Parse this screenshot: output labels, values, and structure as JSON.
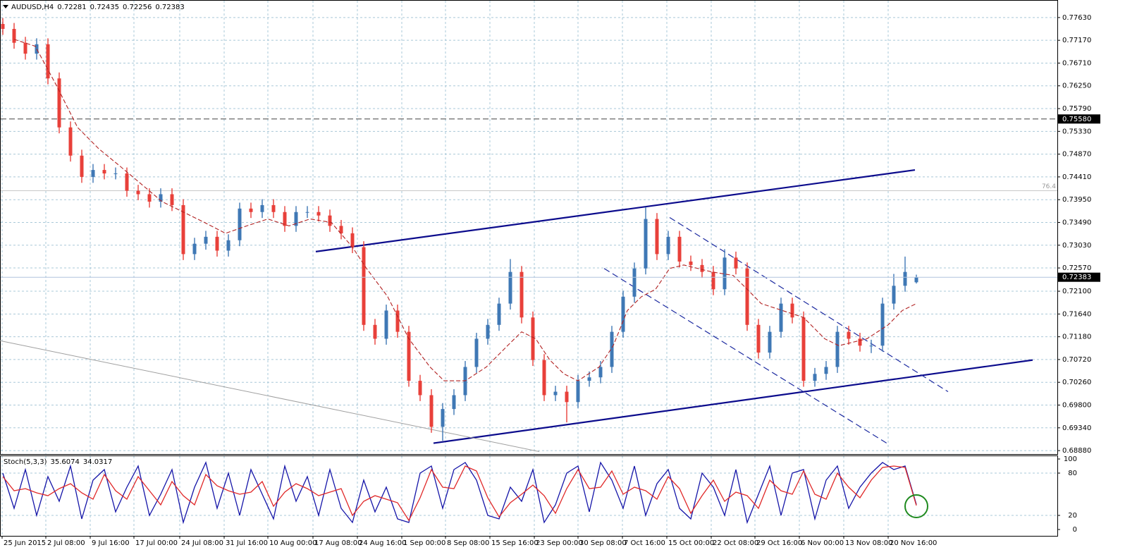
{
  "chart_data": {
    "type": "candlestick",
    "symbol": "AUDUSD,H4",
    "x": [
      2,
      10,
      18,
      26,
      34,
      42,
      50,
      58,
      66,
      74,
      82,
      90,
      98,
      106,
      114,
      122,
      130,
      138,
      146,
      154,
      162,
      170,
      178,
      186,
      194,
      202,
      210,
      218,
      226,
      234,
      242,
      250,
      258,
      266,
      274,
      282,
      290,
      298,
      306,
      314,
      322,
      330,
      338,
      346,
      354,
      362,
      370,
      378,
      386,
      394,
      402,
      410,
      418,
      426,
      434,
      442,
      450,
      458,
      466,
      474,
      482,
      490,
      498,
      506,
      514,
      522,
      530,
      538,
      546,
      554,
      562,
      570,
      578,
      586,
      594,
      602,
      610,
      618,
      626,
      634,
      642,
      650
    ],
    "open": [
      0.775,
      0.774,
      0.7712,
      0.769,
      0.7709,
      0.764,
      0.7541,
      0.7484,
      0.7441,
      0.7455,
      0.7448,
      0.7448,
      0.7413,
      0.7406,
      0.7391,
      0.7406,
      0.7384,
      0.7285,
      0.7306,
      0.732,
      0.7292,
      0.7313,
      0.7377,
      0.737,
      0.7384,
      0.737,
      0.7342,
      0.737,
      0.737,
      0.7363,
      0.7342,
      0.7327,
      0.7299,
      0.7142,
      0.7114,
      0.7171,
      0.7128,
      0.7029,
      0.7,
      0.6936,
      0.6972,
      0.7,
      0.7057,
      0.7114,
      0.7142,
      0.7185,
      0.7249,
      0.7157,
      0.7071,
      0.7,
      0.7007,
      0.6986,
      0.7029,
      0.7036,
      0.7057,
      0.7128,
      0.7199,
      0.7256,
      0.7356,
      0.7285,
      0.732,
      0.727,
      0.7263,
      0.7249,
      0.7214,
      0.7278,
      0.7256,
      0.7142,
      0.7086,
      0.7128,
      0.7185,
      0.7157,
      0.7029,
      0.7043,
      0.7057,
      0.7128,
      0.7114,
      0.71,
      0.71,
      0.7185,
      0.7221,
      0.72281
    ],
    "high": [
      0.7762,
      0.7752,
      0.7724,
      0.7721,
      0.7721,
      0.7652,
      0.7553,
      0.7496,
      0.7467,
      0.7467,
      0.746,
      0.746,
      0.7425,
      0.7418,
      0.7418,
      0.7418,
      0.7396,
      0.7318,
      0.7332,
      0.7332,
      0.7325,
      0.7389,
      0.7389,
      0.7396,
      0.7396,
      0.7382,
      0.7382,
      0.7382,
      0.7382,
      0.7375,
      0.7354,
      0.7339,
      0.7311,
      0.7154,
      0.7183,
      0.7183,
      0.714,
      0.7041,
      0.7012,
      0.6984,
      0.7012,
      0.7069,
      0.7126,
      0.7154,
      0.7197,
      0.7275,
      0.7261,
      0.7169,
      0.7083,
      0.7019,
      0.7019,
      0.7041,
      0.7048,
      0.7069,
      0.714,
      0.7211,
      0.7268,
      0.738,
      0.7368,
      0.7332,
      0.7332,
      0.7282,
      0.7275,
      0.7261,
      0.7295,
      0.729,
      0.7268,
      0.7154,
      0.714,
      0.7197,
      0.7197,
      0.7169,
      0.7055,
      0.7069,
      0.714,
      0.714,
      0.7126,
      0.7112,
      0.7197,
      0.7245,
      0.728,
      0.72435
    ],
    "low": [
      0.7728,
      0.77,
      0.7678,
      0.7678,
      0.7628,
      0.7529,
      0.7472,
      0.7429,
      0.7429,
      0.7436,
      0.7436,
      0.7401,
      0.7394,
      0.7379,
      0.7379,
      0.7372,
      0.7273,
      0.7273,
      0.7294,
      0.728,
      0.728,
      0.7301,
      0.7358,
      0.7358,
      0.7358,
      0.733,
      0.733,
      0.7358,
      0.7351,
      0.733,
      0.7315,
      0.7287,
      0.713,
      0.7102,
      0.7102,
      0.7116,
      0.7017,
      0.6988,
      0.6924,
      0.6908,
      0.696,
      0.6988,
      0.7045,
      0.7102,
      0.713,
      0.7173,
      0.7145,
      0.7059,
      0.6988,
      0.6988,
      0.6945,
      0.6974,
      0.7017,
      0.7024,
      0.7045,
      0.7116,
      0.7187,
      0.7244,
      0.7273,
      0.7273,
      0.7258,
      0.7251,
      0.7237,
      0.7202,
      0.7202,
      0.7244,
      0.713,
      0.7074,
      0.7074,
      0.7116,
      0.7145,
      0.7017,
      0.7017,
      0.7031,
      0.7045,
      0.7102,
      0.7088,
      0.7085,
      0.7088,
      0.7173,
      0.7209,
      0.72256
    ],
    "close": [
      0.774,
      0.7712,
      0.769,
      0.7709,
      0.764,
      0.7541,
      0.7484,
      0.7441,
      0.7455,
      0.7448,
      0.7448,
      0.7413,
      0.7406,
      0.7391,
      0.7406,
      0.7384,
      0.7285,
      0.7306,
      0.732,
      0.7292,
      0.7313,
      0.7377,
      0.737,
      0.7384,
      0.737,
      0.7342,
      0.737,
      0.737,
      0.7363,
      0.7342,
      0.7327,
      0.7299,
      0.7142,
      0.7114,
      0.7171,
      0.7128,
      0.7029,
      0.7,
      0.6936,
      0.6972,
      0.7,
      0.7057,
      0.7114,
      0.7142,
      0.7185,
      0.7249,
      0.7157,
      0.7071,
      0.7,
      0.7007,
      0.6986,
      0.7029,
      0.7036,
      0.7057,
      0.7128,
      0.7199,
      0.7256,
      0.7356,
      0.7285,
      0.732,
      0.727,
      0.7263,
      0.7249,
      0.7214,
      0.7278,
      0.7256,
      0.7142,
      0.7086,
      0.7128,
      0.7185,
      0.7157,
      0.7029,
      0.7043,
      0.7057,
      0.7128,
      0.7114,
      0.71,
      0.71,
      0.7185,
      0.7221,
      0.7249,
      0.72383
    ],
    "up_color": "#3f78b5",
    "down_color": "#e8403a",
    "xlim": [
      0,
      750
    ],
    "ylim": [
      0.6881,
      0.7797
    ],
    "grid": true,
    "yticks": [
      {
        "value": 0.7763,
        "label": "0.77630"
      },
      {
        "value": 0.7717,
        "label": "0.77170"
      },
      {
        "value": 0.7671,
        "label": "0.76710"
      },
      {
        "value": 0.7625,
        "label": "0.76250"
      },
      {
        "value": 0.7579,
        "label": "0.75790"
      },
      {
        "value": 0.7533,
        "label": "0.75330"
      },
      {
        "value": 0.7487,
        "label": "0.74870"
      },
      {
        "value": 0.7441,
        "label": "0.74410"
      },
      {
        "value": 0.7395,
        "label": "0.73950"
      },
      {
        "value": 0.7349,
        "label": "0.73490"
      },
      {
        "value": 0.7303,
        "label": "0.73030"
      },
      {
        "value": 0.7257,
        "label": "0.72570"
      },
      {
        "value": 0.721,
        "label": "0.72100"
      },
      {
        "value": 0.7164,
        "label": "0.71640"
      },
      {
        "value": 0.7118,
        "label": "0.71180"
      },
      {
        "value": 0.7072,
        "label": "0.70720"
      },
      {
        "value": 0.7026,
        "label": "0.70260"
      },
      {
        "value": 0.698,
        "label": "0.69800"
      },
      {
        "value": 0.6934,
        "label": "0.69340"
      },
      {
        "value": 0.6888,
        "label": "0.68880"
      }
    ],
    "xticks": [
      {
        "value": 1.5,
        "label": "25 Jun 2015"
      },
      {
        "value": 32.5,
        "label": "2 Jul 08:00"
      },
      {
        "value": 64,
        "label": "9 Jul 16:00"
      },
      {
        "value": 95,
        "label": "17 Jul 00:00"
      },
      {
        "value": 127.5,
        "label": "24 Jul 08:00"
      },
      {
        "value": 159,
        "label": "31 Jul 16:00"
      },
      {
        "value": 190,
        "label": "10 Aug 00:00"
      },
      {
        "value": 222,
        "label": "17 Aug 08:00"
      },
      {
        "value": 253.5,
        "label": "24 Aug 16:00"
      },
      {
        "value": 285,
        "label": "1 Sep 00:00"
      },
      {
        "value": 316,
        "label": "8 Sep 08:00"
      },
      {
        "value": 347.5,
        "label": "15 Sep 16:00"
      },
      {
        "value": 379,
        "label": "23 Sep 00:00"
      },
      {
        "value": 410,
        "label": "30 Sep 08:00"
      },
      {
        "value": 441.5,
        "label": "7 Oct 16:00"
      },
      {
        "value": 473,
        "label": "15 Oct 00:00"
      },
      {
        "value": 504.5,
        "label": "22 Oct 08:00"
      },
      {
        "value": 535.5,
        "label": "29 Oct 16:00"
      },
      {
        "value": 567,
        "label": "6 Nov 00:00"
      },
      {
        "value": 598.5,
        "label": "13 Nov 08:00"
      },
      {
        "value": 630,
        "label": "20 Nov 16:00"
      }
    ],
    "moving_average": {
      "color": "#b22222",
      "x": [
        10,
        25,
        40,
        55,
        70,
        85,
        100,
        115,
        130,
        145,
        160,
        175,
        190,
        205,
        220,
        235,
        250,
        260,
        275,
        290,
        305,
        315,
        330,
        345,
        360,
        370,
        380,
        390,
        400,
        410,
        425,
        435,
        445,
        455,
        465,
        475,
        485,
        495,
        505,
        520,
        530,
        540,
        555,
        570,
        585,
        595,
        605,
        615,
        630,
        640,
        650
      ],
      "values": [
        0.7719,
        0.7705,
        0.7626,
        0.7541,
        0.7498,
        0.7463,
        0.7427,
        0.7391,
        0.737,
        0.7349,
        0.7327,
        0.7342,
        0.7356,
        0.7342,
        0.7356,
        0.7349,
        0.7299,
        0.7256,
        0.7199,
        0.7114,
        0.7057,
        0.7029,
        0.7029,
        0.7057,
        0.71,
        0.7128,
        0.7114,
        0.7071,
        0.7043,
        0.7029,
        0.7057,
        0.71,
        0.7171,
        0.7199,
        0.7214,
        0.7256,
        0.7263,
        0.7256,
        0.7249,
        0.7242,
        0.7214,
        0.7185,
        0.7171,
        0.7157,
        0.7114,
        0.71,
        0.7107,
        0.7114,
        0.7142,
        0.7171,
        0.7185
      ]
    },
    "trend_lines": [
      {
        "x": [
          224,
          649
        ],
        "values": [
          0.729,
          0.7455
        ],
        "color": "#0b0b8c",
        "style": "solid"
      },
      {
        "x": [
          307.5,
          732.5
        ],
        "values": [
          0.6903,
          0.7071
        ],
        "color": "#0b0b8c",
        "style": "solid"
      },
      {
        "x": [
          475,
          672.5
        ],
        "values": [
          0.7359,
          0.7007
        ],
        "color": "#1c2aa0",
        "style": "dashed"
      },
      {
        "x": [
          428.5,
          629
        ],
        "values": [
          0.7256,
          0.6903
        ],
        "color": "#1c2aa0",
        "style": "dashed"
      },
      {
        "x": [
          0,
          382.5
        ],
        "values": [
          0.711,
          0.6886
        ],
        "color": "#a0a0a0",
        "style": "thin"
      }
    ],
    "hlines": [
      {
        "value": 0.7558,
        "label": "0.75580",
        "color": "#444",
        "style": "dashed"
      }
    ],
    "fib_level": {
      "value": 0.7413,
      "label": "76.4",
      "color": "#c8c8c8"
    },
    "indicator": {
      "type": "line",
      "title": "Stoch(5,3,3)",
      "ylim": [
        0,
        100
      ],
      "yticks": [
        0,
        20,
        80,
        100
      ],
      "series": [
        {
          "color": "#1414a8",
          "values": [
            80,
            30,
            85,
            20,
            75,
            40,
            90,
            15,
            70,
            85,
            25,
            60,
            90,
            20,
            50,
            85,
            10,
            60,
            95,
            30,
            80,
            20,
            85,
            50,
            15,
            90,
            40,
            75,
            20,
            85,
            30,
            10,
            70,
            25,
            60,
            15,
            10,
            80,
            90,
            30,
            85,
            95,
            70,
            20,
            15,
            60,
            40,
            85,
            10,
            35,
            80,
            90,
            25,
            95,
            70,
            30,
            90,
            20,
            65,
            85,
            30,
            15,
            80,
            60,
            20,
            85,
            10,
            50,
            90,
            20,
            80,
            85,
            15,
            70,
            90,
            30,
            60,
            80,
            95,
            85,
            90,
            35.6074
          ]
        },
        {
          "color": "#e02828",
          "values": [
            75,
            55,
            58,
            52,
            48,
            58,
            65,
            52,
            43,
            78,
            55,
            43,
            75,
            55,
            35,
            68,
            48,
            35,
            78,
            62,
            55,
            50,
            53,
            68,
            33,
            53,
            65,
            58,
            48,
            53,
            58,
            20,
            40,
            48,
            43,
            38,
            13,
            45,
            85,
            60,
            58,
            90,
            83,
            45,
            18,
            38,
            50,
            63,
            48,
            23,
            58,
            85,
            58,
            60,
            83,
            50,
            60,
            55,
            43,
            75,
            58,
            23,
            48,
            70,
            40,
            53,
            48,
            30,
            70,
            55,
            50,
            83,
            50,
            43,
            80,
            60,
            45,
            70,
            88,
            90,
            88,
            34.0317
          ]
        }
      ]
    }
  }
}
